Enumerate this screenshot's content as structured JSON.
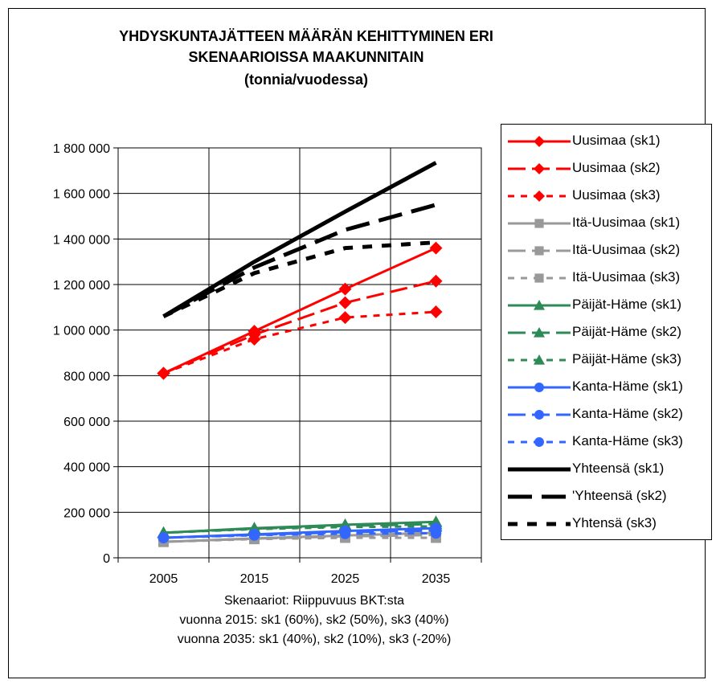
{
  "title_lines": [
    "YHDYSKUNTAJÄTTEEN MÄÄRÄN KEHITTYMINEN ERI",
    "SKENAARIOISSA MAAKUNNITAIN",
    "(tonnia/vuodessa)"
  ],
  "footnote_lines": [
    "Skenaariot: Riippuvuus BKT:sta",
    "vuonna 2015:  sk1 (60%),  sk2 (50%),  sk3 (40%)",
    "vuonna 2035:  sk1 (40%), sk2 (10%), sk3 (-20%)"
  ],
  "chart_data": {
    "type": "line",
    "categories": [
      "2005",
      "2015",
      "2025",
      "2035"
    ],
    "ylim": [
      0,
      1800000
    ],
    "ytick_labels": [
      "0",
      "200 000",
      "400 000",
      "600 000",
      "800 000",
      "1 000 000",
      "1 200 000",
      "1 400 000",
      "1 600 000",
      "1 800 000"
    ],
    "grid": true,
    "legend_position": "right",
    "series": [
      {
        "name": "Uusimaa (sk1)",
        "color": "#ff0000",
        "dash": "solid",
        "marker": "diamond",
        "values": [
          810000,
          995000,
          1180000,
          1360000
        ]
      },
      {
        "name": "Uusimaa (sk2)",
        "color": "#ff0000",
        "dash": "long",
        "marker": "diamond",
        "values": [
          810000,
          980000,
          1120000,
          1215000
        ]
      },
      {
        "name": "Uusimaa (sk3)",
        "color": "#ff0000",
        "dash": "short",
        "marker": "diamond",
        "values": [
          810000,
          960000,
          1055000,
          1080000
        ]
      },
      {
        "name": "Itä-Uusimaa (sk1)",
        "color": "#999999",
        "dash": "solid",
        "marker": "square",
        "values": [
          70000,
          85000,
          98000,
          110000
        ]
      },
      {
        "name": "Itä-Uusimaa (sk2)",
        "color": "#999999",
        "dash": "long",
        "marker": "square",
        "values": [
          70000,
          84000,
          94000,
          100000
        ]
      },
      {
        "name": "Itä-Uusimaa (sk3)",
        "color": "#999999",
        "dash": "short",
        "marker": "square",
        "values": [
          70000,
          82000,
          88000,
          88000
        ]
      },
      {
        "name": "Päijät-Häme (sk1)",
        "color": "#2e8b57",
        "dash": "solid",
        "marker": "triangle",
        "values": [
          110000,
          130000,
          145000,
          158000
        ]
      },
      {
        "name": "Päijät-Häme (sk2)",
        "color": "#2e8b57",
        "dash": "long",
        "marker": "triangle",
        "values": [
          110000,
          128000,
          140000,
          148000
        ]
      },
      {
        "name": "Päijät-Häme (sk3)",
        "color": "#2e8b57",
        "dash": "short",
        "marker": "triangle",
        "values": [
          110000,
          126000,
          135000,
          138000
        ]
      },
      {
        "name": "Kanta-Häme (sk1)",
        "color": "#3366ff",
        "dash": "solid",
        "marker": "circle",
        "values": [
          88000,
          103000,
          118000,
          130000
        ]
      },
      {
        "name": "Kanta-Häme (sk2)",
        "color": "#3366ff",
        "dash": "long",
        "marker": "circle",
        "values": [
          88000,
          101000,
          112000,
          120000
        ]
      },
      {
        "name": "Kanta-Häme (sk3)",
        "color": "#3366ff",
        "dash": "short",
        "marker": "circle",
        "values": [
          88000,
          99000,
          106000,
          108000
        ]
      },
      {
        "name": "Yhteensä (sk1)",
        "color": "#000000",
        "dash": "solid",
        "marker": "none",
        "values": [
          1060000,
          1300000,
          1520000,
          1735000
        ]
      },
      {
        "name": "'Yhteensä (sk2)",
        "color": "#000000",
        "dash": "long",
        "marker": "none",
        "values": [
          1060000,
          1275000,
          1440000,
          1550000
        ]
      },
      {
        "name": "Yhtensä (sk3)",
        "color": "#000000",
        "dash": "short",
        "marker": "none",
        "values": [
          1060000,
          1250000,
          1360000,
          1385000
        ]
      }
    ]
  }
}
